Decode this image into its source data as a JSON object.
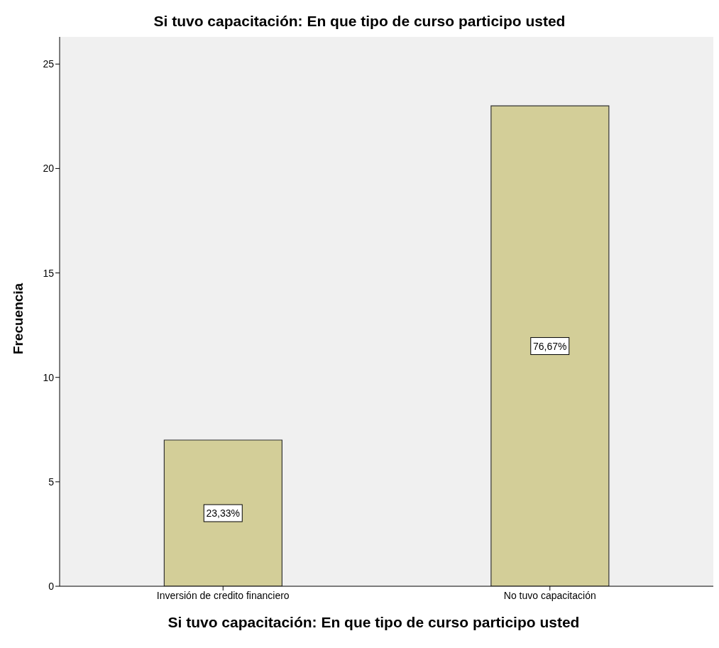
{
  "chart_data": {
    "type": "bar",
    "title": "Si tuvo capacitación: En que tipo de curso participo usted",
    "xlabel": "Si tuvo capacitación: En que tipo de curso participo usted",
    "ylabel": "Frecuencia",
    "categories": [
      "Inversión de credito financiero",
      "No tuvo capacitación"
    ],
    "values": [
      7,
      23
    ],
    "color": "#d3ce98",
    "annotations": [
      "23,33%",
      "76,67%"
    ],
    "ylim": [
      0,
      26.3
    ],
    "yticks": [
      0,
      5,
      10,
      15,
      20,
      25
    ],
    "grid": false
  }
}
